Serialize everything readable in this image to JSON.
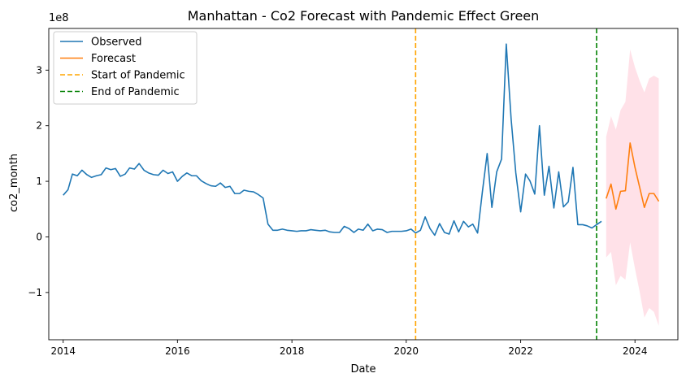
{
  "chart_data": {
    "type": "line",
    "title": "Manhattan - Co2 Forecast with Pandemic Effect Green",
    "xlabel": "Date",
    "ylabel": "co2_month",
    "y_scale_label": "1e8",
    "xlim": [
      "2013-10-01",
      "2024-10-01"
    ],
    "ylim": [
      -1.85,
      3.75
    ],
    "x_ticks": [
      {
        "date": "2014-01-01",
        "label": "2014"
      },
      {
        "date": "2016-01-01",
        "label": "2016"
      },
      {
        "date": "2018-01-01",
        "label": "2018"
      },
      {
        "date": "2020-01-01",
        "label": "2020"
      },
      {
        "date": "2022-01-01",
        "label": "2022"
      },
      {
        "date": "2024-01-01",
        "label": "2024"
      }
    ],
    "y_ticks": [
      {
        "value": -1,
        "label": "−1"
      },
      {
        "value": 0,
        "label": "0"
      },
      {
        "value": 1,
        "label": "1"
      },
      {
        "value": 2,
        "label": "2"
      },
      {
        "value": 3,
        "label": "3"
      }
    ],
    "legend": {
      "placement": "top-left",
      "entries": [
        {
          "label": "Observed",
          "color": "#1f77b4",
          "style": "solid"
        },
        {
          "label": "Forecast",
          "color": "#ff7f0e",
          "style": "solid"
        },
        {
          "label": "Start of Pandemic",
          "color": "#ffa500",
          "style": "dashed"
        },
        {
          "label": "End of Pandemic",
          "color": "#008000",
          "style": "dashed"
        }
      ]
    },
    "vlines": [
      {
        "name": "Start of Pandemic",
        "date": "2020-03-01",
        "color": "#ffa500"
      },
      {
        "name": "End of Pandemic",
        "date": "2023-05-01",
        "color": "#008000"
      }
    ],
    "series": [
      {
        "name": "Observed",
        "color": "#1f77b4",
        "x": [
          "2014-01",
          "2014-02",
          "2014-03",
          "2014-04",
          "2014-05",
          "2014-06",
          "2014-07",
          "2014-08",
          "2014-09",
          "2014-10",
          "2014-11",
          "2014-12",
          "2015-01",
          "2015-02",
          "2015-03",
          "2015-04",
          "2015-05",
          "2015-06",
          "2015-07",
          "2015-08",
          "2015-09",
          "2015-10",
          "2015-11",
          "2015-12",
          "2016-01",
          "2016-02",
          "2016-03",
          "2016-04",
          "2016-05",
          "2016-06",
          "2016-07",
          "2016-08",
          "2016-09",
          "2016-10",
          "2016-11",
          "2016-12",
          "2017-01",
          "2017-02",
          "2017-03",
          "2017-04",
          "2017-05",
          "2017-06",
          "2017-07",
          "2017-08",
          "2017-09",
          "2017-10",
          "2017-11",
          "2017-12",
          "2018-01",
          "2018-02",
          "2018-03",
          "2018-04",
          "2018-05",
          "2018-06",
          "2018-07",
          "2018-08",
          "2018-09",
          "2018-10",
          "2018-11",
          "2018-12",
          "2019-01",
          "2019-02",
          "2019-03",
          "2019-04",
          "2019-05",
          "2019-06",
          "2019-07",
          "2019-08",
          "2019-09",
          "2019-10",
          "2019-11",
          "2019-12",
          "2020-01",
          "2020-02",
          "2020-03",
          "2020-04",
          "2020-05",
          "2020-06",
          "2020-07",
          "2020-08",
          "2020-09",
          "2020-10",
          "2020-11",
          "2020-12",
          "2021-01",
          "2021-02",
          "2021-03",
          "2021-04",
          "2021-05",
          "2021-06",
          "2021-07",
          "2021-08",
          "2021-09",
          "2021-10",
          "2021-11",
          "2021-12",
          "2022-01",
          "2022-02",
          "2022-03",
          "2022-04",
          "2022-05",
          "2022-06",
          "2022-07",
          "2022-08",
          "2022-09",
          "2022-10",
          "2022-11",
          "2022-12",
          "2023-01",
          "2023-02",
          "2023-03",
          "2023-04",
          "2023-05",
          "2023-06"
        ],
        "y": [
          0.75,
          0.85,
          1.13,
          1.1,
          1.2,
          1.12,
          1.07,
          1.1,
          1.12,
          1.24,
          1.21,
          1.23,
          1.09,
          1.13,
          1.24,
          1.22,
          1.32,
          1.2,
          1.15,
          1.12,
          1.11,
          1.2,
          1.14,
          1.17,
          1.0,
          1.09,
          1.15,
          1.1,
          1.1,
          1.01,
          0.96,
          0.92,
          0.91,
          0.97,
          0.89,
          0.91,
          0.78,
          0.78,
          0.84,
          0.82,
          0.81,
          0.76,
          0.7,
          0.23,
          0.12,
          0.12,
          0.14,
          0.12,
          0.11,
          0.1,
          0.11,
          0.11,
          0.13,
          0.12,
          0.11,
          0.12,
          0.09,
          0.08,
          0.08,
          0.19,
          0.15,
          0.08,
          0.14,
          0.12,
          0.23,
          0.11,
          0.14,
          0.13,
          0.08,
          0.1,
          0.1,
          0.1,
          0.11,
          0.14,
          0.07,
          0.12,
          0.36,
          0.15,
          0.03,
          0.24,
          0.08,
          0.05,
          0.29,
          0.09,
          0.28,
          0.18,
          0.23,
          0.07,
          0.8,
          1.5,
          0.53,
          1.17,
          1.4,
          3.47,
          2.12,
          1.15,
          0.45,
          1.13,
          1.01,
          0.77,
          2.0,
          0.75,
          1.27,
          0.52,
          1.17,
          0.54,
          0.63,
          1.25,
          0.22,
          0.22,
          0.2,
          0.16,
          0.22,
          0.28
        ]
      },
      {
        "name": "Forecast",
        "color": "#ff7f0e",
        "x": [
          "2023-07",
          "2023-08",
          "2023-09",
          "2023-10",
          "2023-11",
          "2023-12",
          "2024-01",
          "2024-02",
          "2024-03",
          "2024-04",
          "2024-05",
          "2024-06"
        ],
        "y": [
          0.69,
          0.95,
          0.5,
          0.82,
          0.83,
          1.69,
          1.25,
          0.88,
          0.53,
          0.78,
          0.78,
          0.64
        ]
      }
    ],
    "confidence_band": {
      "color": "#ffe1e8",
      "x": [
        "2023-07",
        "2023-08",
        "2023-09",
        "2023-10",
        "2023-11",
        "2023-12",
        "2024-01",
        "2024-02",
        "2024-03",
        "2024-04",
        "2024-05",
        "2024-06"
      ],
      "upper": [
        1.8,
        2.17,
        1.93,
        2.28,
        2.43,
        3.37,
        3.05,
        2.8,
        2.6,
        2.85,
        2.9,
        2.85
      ],
      "lower": [
        -0.37,
        -0.27,
        -0.87,
        -0.7,
        -0.77,
        -0.1,
        -0.57,
        -1.0,
        -1.45,
        -1.28,
        -1.35,
        -1.6
      ]
    }
  }
}
